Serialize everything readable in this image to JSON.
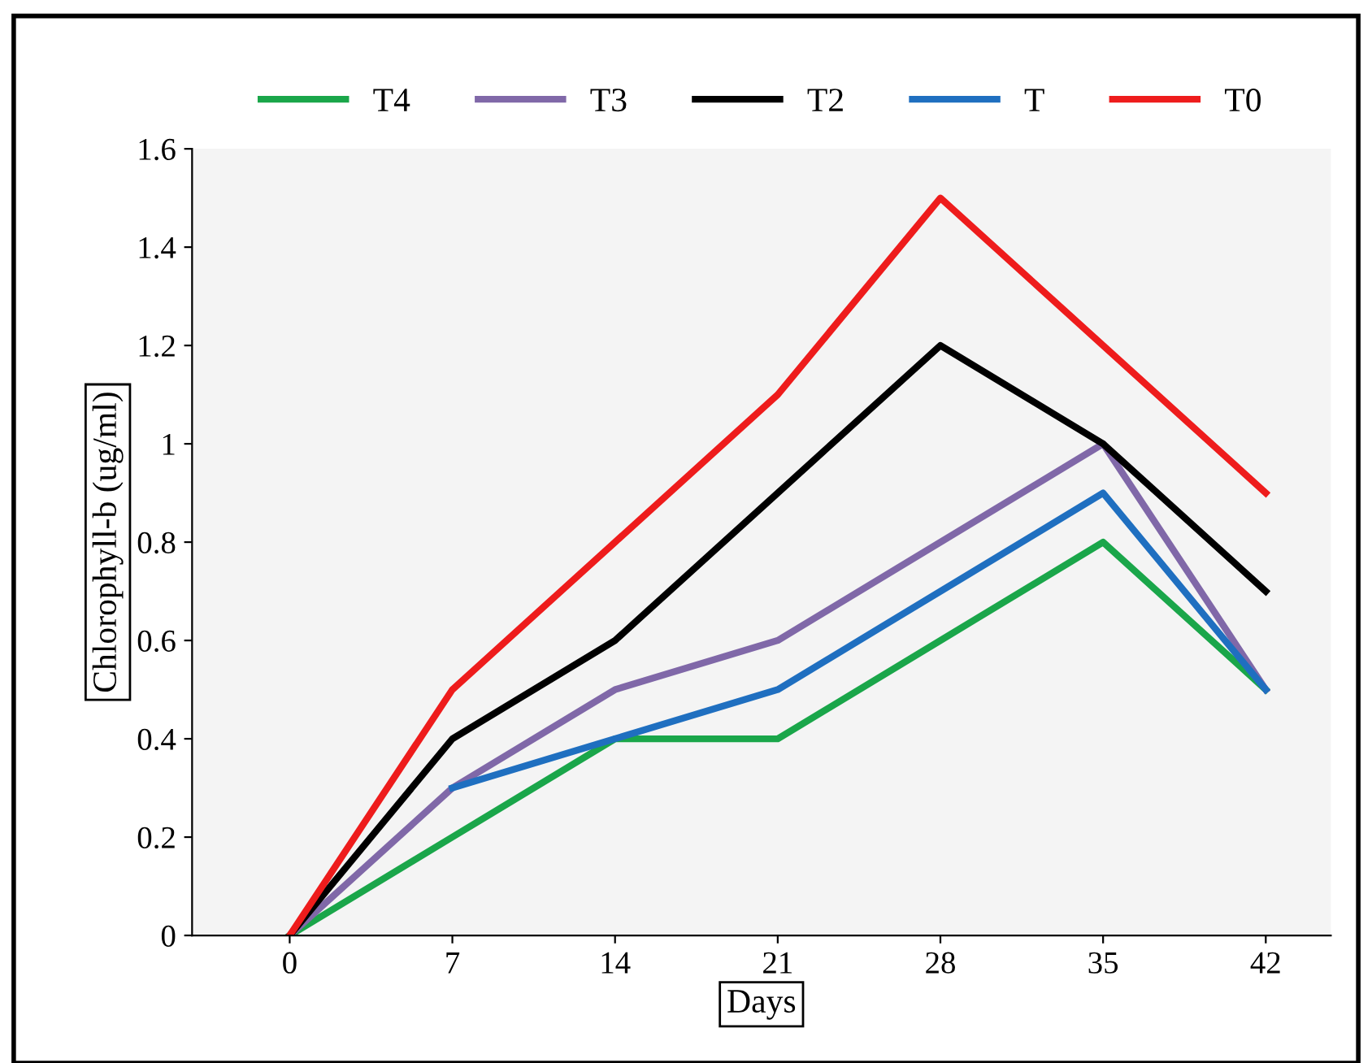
{
  "chart_data": {
    "type": "line",
    "xlabel": "Days",
    "ylabel": "Chlorophyll-b (ug/ml)",
    "categories": [
      "0",
      "7",
      "14",
      "21",
      "28",
      "35",
      "42"
    ],
    "series": [
      {
        "name": "T4",
        "color": "#1aa64a",
        "values": [
          0,
          0.2,
          0.4,
          0.4,
          0.6,
          0.8,
          0.5
        ]
      },
      {
        "name": "T3",
        "color": "#8068a8",
        "values": [
          0,
          0.3,
          0.5,
          0.6,
          0.8,
          1,
          0.5
        ]
      },
      {
        "name": "T2",
        "color": "#000000",
        "values": [
          0,
          0.4,
          0.6,
          0.9,
          1.2,
          1,
          0.7
        ]
      },
      {
        "name": "T",
        "color": "#1f6fc0",
        "values": [
          null,
          0.3,
          0.4,
          0.5,
          0.7,
          0.9,
          0.5
        ]
      },
      {
        "name": "T0",
        "color": "#ee1c1c",
        "values": [
          0,
          0.5,
          0.8,
          1.1,
          1.5,
          1.2,
          0.9
        ]
      }
    ],
    "ylim": [
      0,
      1.6
    ],
    "yticks": [
      0,
      0.2,
      0.4,
      0.6,
      0.8,
      1,
      1.2,
      1.4,
      1.6
    ],
    "grid": false,
    "legend": "top",
    "marker": "none",
    "line_style": "solid"
  }
}
